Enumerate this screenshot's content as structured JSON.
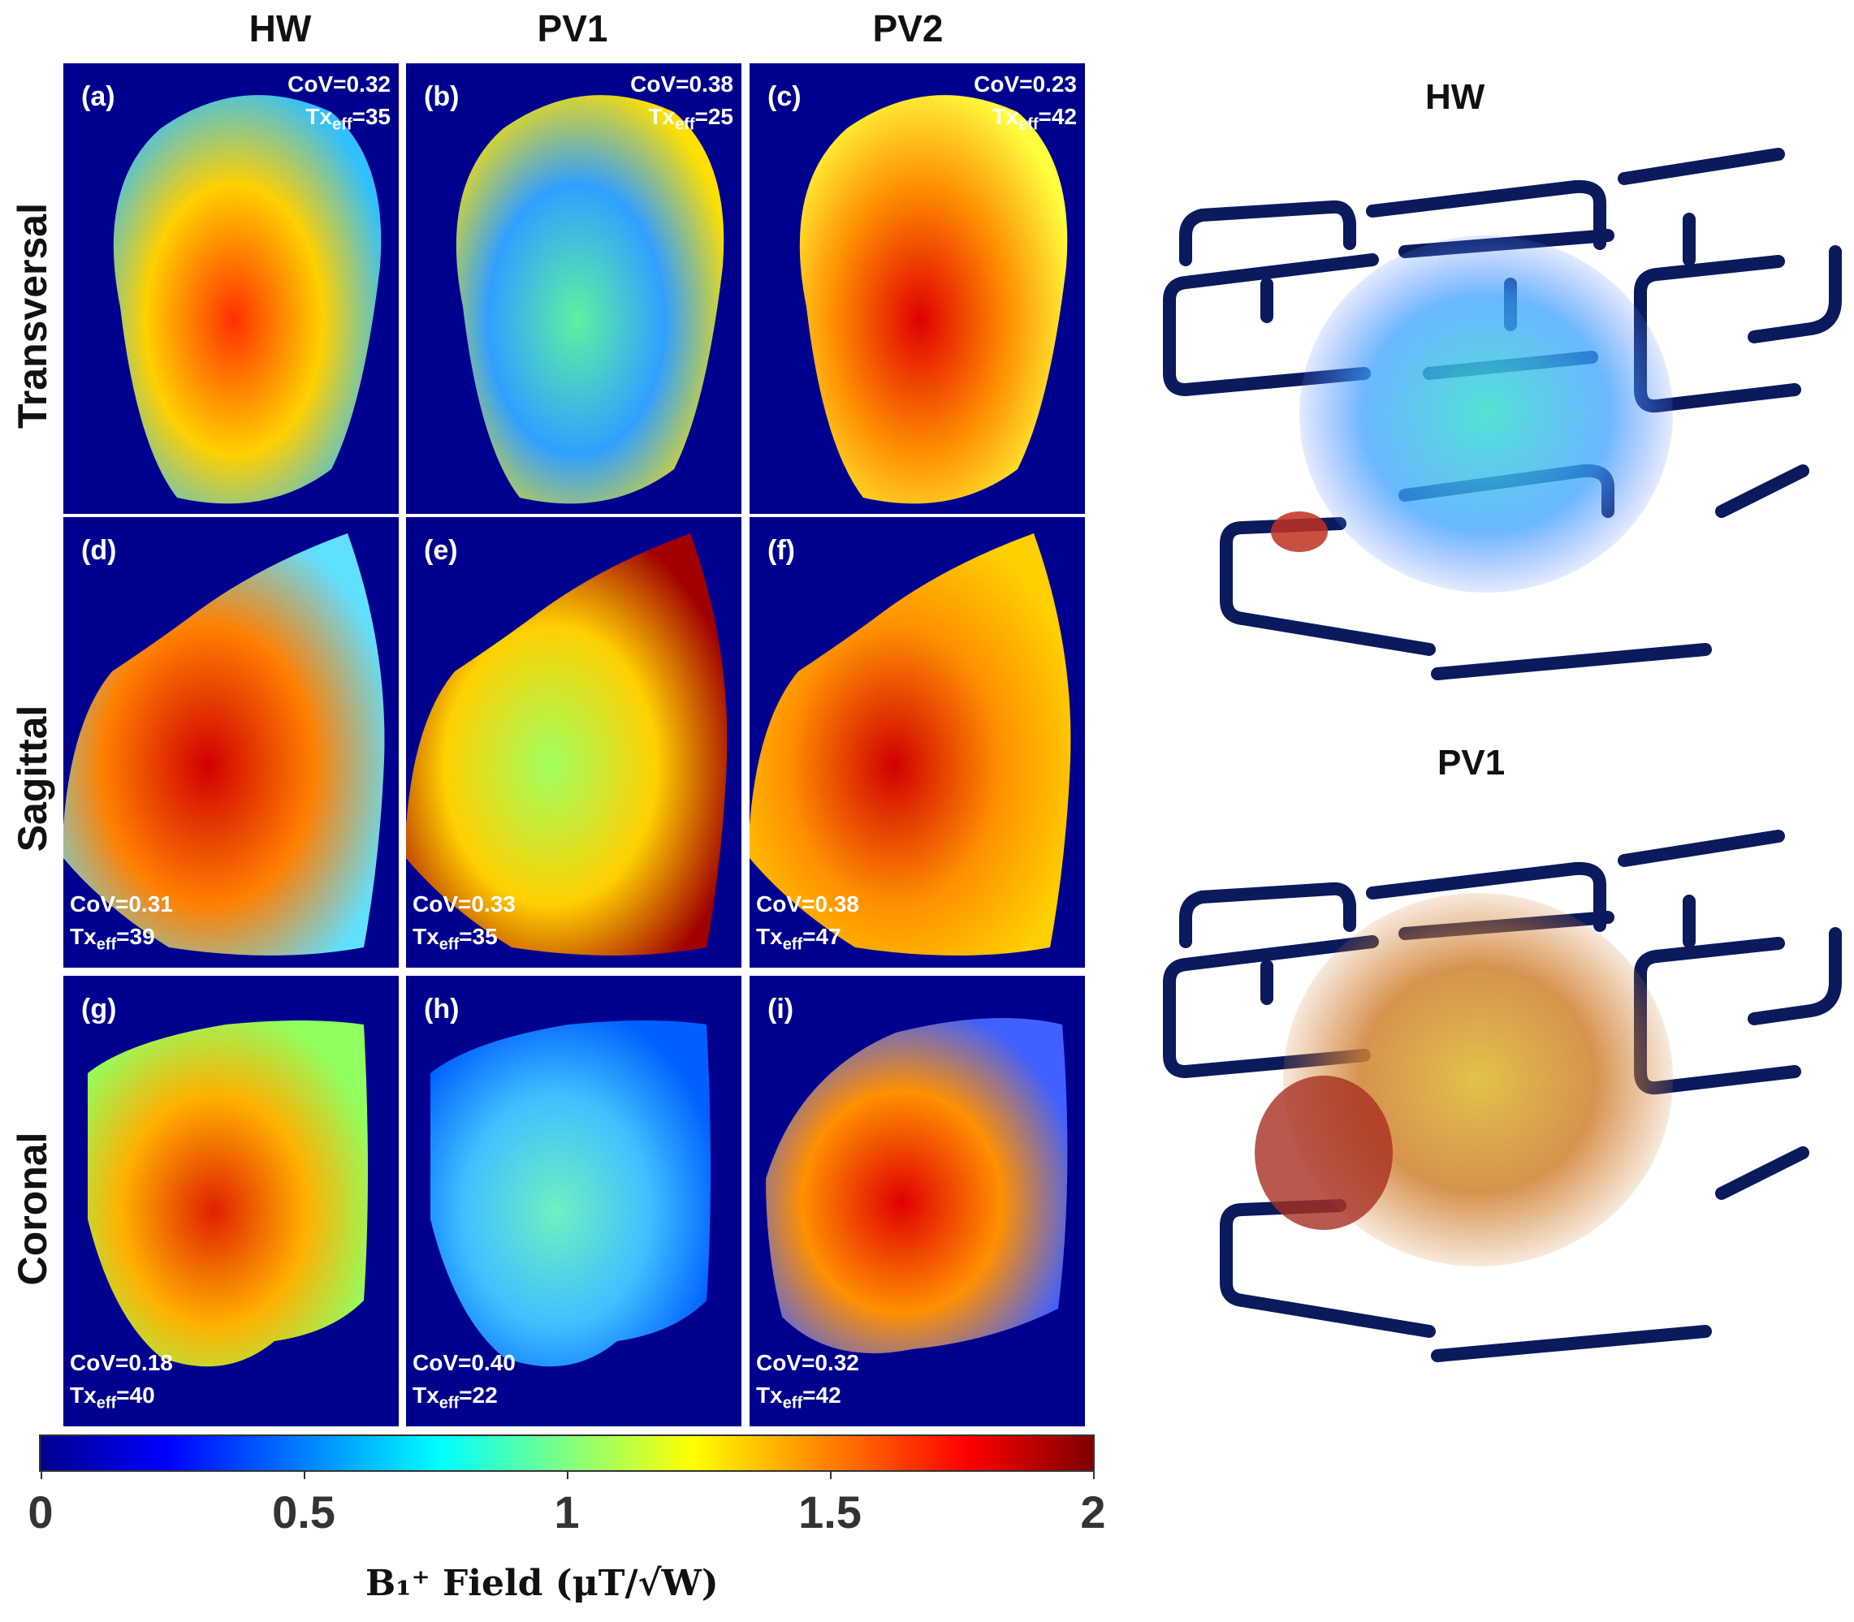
{
  "columns": [
    "HW",
    "PV1",
    "PV2"
  ],
  "rows": [
    "Transversal",
    "Sagittal",
    "Coronal"
  ],
  "panels": [
    {
      "label": "(a)",
      "cov": "CoV=0.32",
      "tx_prefix": "Tx",
      "tx_sub": "eff",
      "tx_val": "=35"
    },
    {
      "label": "(b)",
      "cov": "CoV=0.38",
      "tx_prefix": "Tx",
      "tx_sub": "eff",
      "tx_val": "=25"
    },
    {
      "label": "(c)",
      "cov": "CoV=0.23",
      "tx_prefix": "Tx",
      "tx_sub": "eff",
      "tx_val": "=42"
    },
    {
      "label": "(d)",
      "cov": "CoV=0.31",
      "tx_prefix": "Tx",
      "tx_sub": "eff",
      "tx_val": "=39"
    },
    {
      "label": "(e)",
      "cov": "CoV=0.33",
      "tx_prefix": "Tx",
      "tx_sub": "eff",
      "tx_val": "=35"
    },
    {
      "label": "(f)",
      "cov": "CoV=0.38",
      "tx_prefix": "Tx",
      "tx_sub": "eff",
      "tx_val": "=47"
    },
    {
      "label": "(g)",
      "cov": "CoV=0.18",
      "tx_prefix": "Tx",
      "tx_sub": "eff",
      "tx_val": "=40"
    },
    {
      "label": "(h)",
      "cov": "CoV=0.40",
      "tx_prefix": "Tx",
      "tx_sub": "eff",
      "tx_val": "=22"
    },
    {
      "label": "(i)",
      "cov": "CoV=0.32",
      "tx_prefix": "Tx",
      "tx_sub": "eff",
      "tx_val": "=42"
    }
  ],
  "colorbar": {
    "ticks": [
      "0",
      "0.5",
      "1",
      "1.5",
      "2"
    ],
    "title": "B₁⁺ Field (μT/√W)",
    "range": [
      0,
      2
    ],
    "colormap": "jet"
  },
  "renders": [
    {
      "title": "HW"
    },
    {
      "title": "PV1"
    }
  ],
  "colors": {
    "background": "#00008f",
    "text": "#111111"
  }
}
